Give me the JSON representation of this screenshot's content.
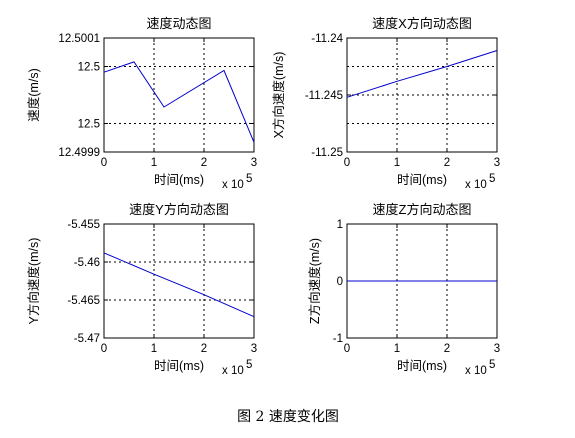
{
  "figure": {
    "caption": "图 2  速度变化图"
  },
  "chart_data": [
    {
      "type": "line",
      "title": "速度动态图",
      "xlabel": "时间(ms)",
      "ylabel": "速度(m/s)",
      "x_multiplier": "x 10",
      "x_multiplier_exp": "5",
      "xlim": [
        0,
        3
      ],
      "ylim": [
        12.4999,
        12.5001
      ],
      "xticks": [
        "0",
        "1",
        "2",
        "3"
      ],
      "yticks": [
        {
          "value": 12.5001,
          "label": "12.5001"
        },
        {
          "value": 12.50005,
          "label": "12.5"
        },
        {
          "value": 12.49995,
          "label": "12.5"
        },
        {
          "value": 12.4999,
          "label": "12.4999"
        }
      ],
      "grid": true,
      "line_color": "#0000cc",
      "series": [
        {
          "x": [
            0,
            0.6,
            1.2,
            2.4,
            3.0
          ],
          "y": [
            12.50004,
            12.500058,
            12.499979,
            12.500043,
            12.499917
          ]
        }
      ]
    },
    {
      "type": "line",
      "title": "速度X方向动态图",
      "xlabel": "时间(ms)",
      "ylabel": "X方向速度(m/s)",
      "x_multiplier": "x 10",
      "x_multiplier_exp": "5",
      "xlim": [
        0,
        3
      ],
      "ylim": [
        -11.25,
        -11.24
      ],
      "xticks": [
        "0",
        "1",
        "2",
        "3"
      ],
      "yticks": [
        {
          "value": -11.24,
          "label": "-11.24"
        },
        {
          "value": -11.245,
          "label": "-11.245"
        },
        {
          "value": -11.25,
          "label": "-11.25"
        }
      ],
      "gridlines_y": [
        -11.2425,
        -11.245,
        -11.2475
      ],
      "grid": true,
      "line_color": "#0000cc",
      "series": [
        {
          "x": [
            0,
            1,
            2,
            3
          ],
          "y": [
            -11.2452,
            -11.2438,
            -11.2425,
            -11.2411
          ]
        }
      ]
    },
    {
      "type": "line",
      "title": "速度Y方向动态图",
      "xlabel": "时间(ms)",
      "ylabel": "Y方向速度(m/s)",
      "x_multiplier": "x 10",
      "x_multiplier_exp": "5",
      "xlim": [
        0,
        3
      ],
      "ylim": [
        -5.47,
        -5.455
      ],
      "xticks": [
        "0",
        "1",
        "2",
        "3"
      ],
      "yticks": [
        {
          "value": -5.455,
          "label": "-5.455"
        },
        {
          "value": -5.46,
          "label": "-5.46"
        },
        {
          "value": -5.465,
          "label": "-5.465"
        },
        {
          "value": -5.47,
          "label": "-5.47"
        }
      ],
      "grid": true,
      "line_color": "#0000cc",
      "series": [
        {
          "x": [
            0,
            1,
            2,
            3
          ],
          "y": [
            -5.4588,
            -5.4616,
            -5.4643,
            -5.4672
          ]
        }
      ]
    },
    {
      "type": "line",
      "title": "速度Z方向动态图",
      "xlabel": "时间(ms)",
      "ylabel": "Z方向速度(m/s)",
      "x_multiplier": "x 10",
      "x_multiplier_exp": "5",
      "xlim": [
        0,
        3
      ],
      "ylim": [
        -1,
        1
      ],
      "xticks": [
        "0",
        "1",
        "2",
        "3"
      ],
      "yticks": [
        {
          "value": 1,
          "label": "1"
        },
        {
          "value": 0,
          "label": "0"
        },
        {
          "value": -1,
          "label": "-1"
        }
      ],
      "grid": true,
      "line_color": "#0000cc",
      "series": [
        {
          "x": [
            0,
            3
          ],
          "y": [
            0,
            0
          ]
        }
      ]
    }
  ]
}
